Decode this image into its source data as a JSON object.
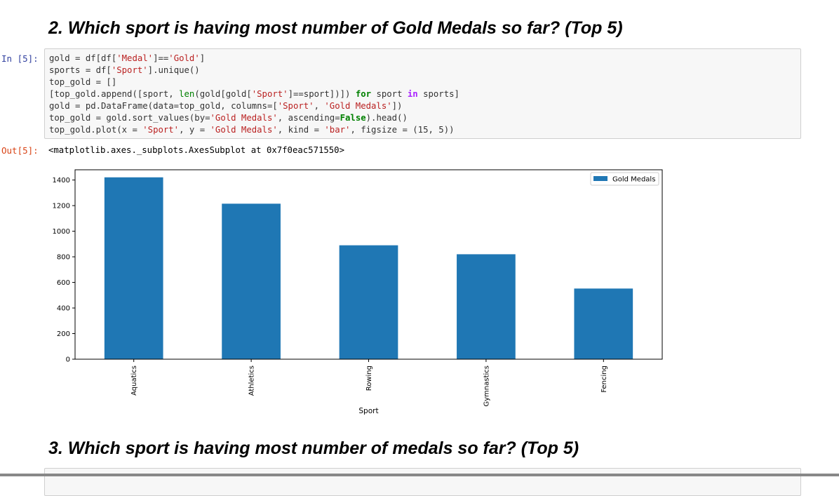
{
  "headings": {
    "q2": "2. Which sport is having most number of Gold Medals so far? (Top 5)",
    "q3": "3. Which sport is having most number of medals so far? (Top 5)"
  },
  "cell": {
    "in_prompt": "In [5]:",
    "out_prompt": "Out[5]:",
    "output_text": "<matplotlib.axes._subplots.AxesSubplot at 0x7f0eac571550>"
  },
  "chart_data": {
    "type": "bar",
    "categories": [
      "Aquatics",
      "Athletics",
      "Rowing",
      "Gymnastics",
      "Fencing"
    ],
    "series": [
      {
        "name": "Gold Medals",
        "values": [
          1421,
          1215,
          890,
          820,
          552
        ],
        "color": "#1f77b4"
      }
    ],
    "xlabel": "Sport",
    "ylabel": "",
    "ylim": [
      0,
      1480
    ],
    "yticks": [
      0,
      200,
      400,
      600,
      800,
      1000,
      1200,
      1400
    ],
    "legend": "top-right",
    "grid": false
  }
}
